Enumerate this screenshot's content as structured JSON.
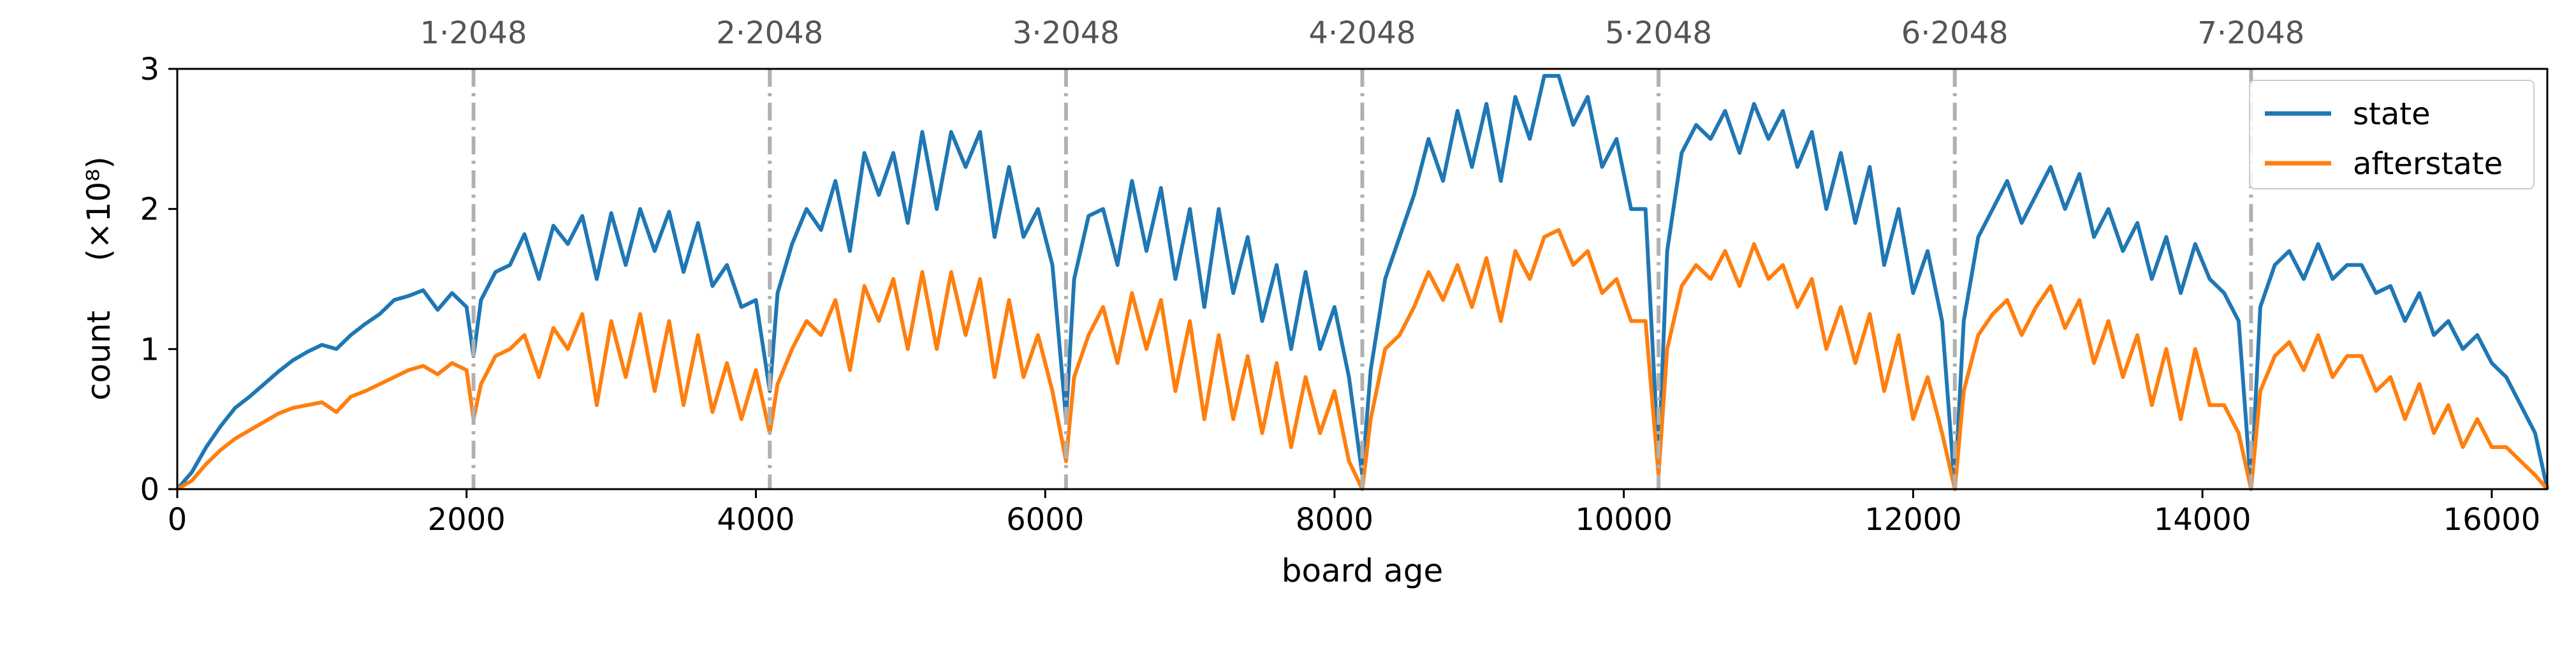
{
  "chart_data": {
    "type": "line",
    "xlabel": "board age",
    "ylabel": "count",
    "ylabel_multiplier": "(×10⁸)",
    "xlim": [
      0,
      16384
    ],
    "ylim": [
      0,
      3
    ],
    "x_ticks": [
      "0",
      "2000",
      "4000",
      "6000",
      "8000",
      "10000",
      "12000",
      "14000",
      "16000"
    ],
    "y_ticks": [
      "0",
      "1",
      "2",
      "3"
    ],
    "reference_lines": {
      "style": "dash-dot",
      "color": "#b0b0b0",
      "x": [
        2048,
        4096,
        6144,
        8192,
        10240,
        12288,
        14336
      ],
      "labels": [
        "1·2048",
        "2·2048",
        "3·2048",
        "4·2048",
        "5·2048",
        "6·2048",
        "7·2048"
      ]
    },
    "legend_position": "top-right",
    "grid": false,
    "series": [
      {
        "name": "state",
        "color": "#1f77b4",
        "note_sampled_points": "approximate envelope read from figure",
        "x": [
          0,
          100,
          200,
          300,
          400,
          500,
          600,
          700,
          800,
          900,
          1000,
          1100,
          1200,
          1300,
          1400,
          1500,
          1600,
          1700,
          1800,
          1900,
          2000,
          2048,
          2100,
          2200,
          2300,
          2400,
          2500,
          2600,
          2700,
          2800,
          2900,
          3000,
          3100,
          3200,
          3300,
          3400,
          3500,
          3600,
          3700,
          3800,
          3900,
          4000,
          4096,
          4150,
          4250,
          4350,
          4450,
          4550,
          4650,
          4750,
          4850,
          4950,
          5050,
          5150,
          5250,
          5350,
          5450,
          5550,
          5650,
          5750,
          5850,
          5950,
          6050,
          6144,
          6200,
          6300,
          6400,
          6500,
          6600,
          6700,
          6800,
          6900,
          7000,
          7100,
          7200,
          7300,
          7400,
          7500,
          7600,
          7700,
          7800,
          7900,
          8000,
          8100,
          8192,
          8250,
          8350,
          8450,
          8550,
          8650,
          8750,
          8850,
          8950,
          9050,
          9150,
          9250,
          9350,
          9450,
          9550,
          9650,
          9750,
          9850,
          9950,
          10050,
          10150,
          10240,
          10300,
          10400,
          10500,
          10600,
          10700,
          10800,
          10900,
          11000,
          11100,
          11200,
          11300,
          11400,
          11500,
          11600,
          11700,
          11800,
          11900,
          12000,
          12100,
          12200,
          12288,
          12350,
          12450,
          12550,
          12650,
          12750,
          12850,
          12950,
          13050,
          13150,
          13250,
          13350,
          13450,
          13550,
          13650,
          13750,
          13850,
          13950,
          14050,
          14150,
          14250,
          14336,
          14400,
          14500,
          14600,
          14700,
          14800,
          14900,
          15000,
          15100,
          15200,
          15300,
          15400,
          15500,
          15600,
          15700,
          15800,
          15900,
          16000,
          16100,
          16200,
          16300,
          16384
        ],
        "values": [
          0.0,
          0.12,
          0.3,
          0.45,
          0.58,
          0.66,
          0.75,
          0.84,
          0.92,
          0.98,
          1.03,
          1.0,
          1.1,
          1.18,
          1.25,
          1.35,
          1.38,
          1.42,
          1.28,
          1.4,
          1.3,
          0.95,
          1.35,
          1.55,
          1.6,
          1.82,
          1.5,
          1.88,
          1.75,
          1.95,
          1.5,
          1.97,
          1.6,
          2.0,
          1.7,
          1.98,
          1.55,
          1.9,
          1.45,
          1.6,
          1.3,
          1.35,
          0.7,
          1.4,
          1.75,
          2.0,
          1.85,
          2.2,
          1.7,
          2.4,
          2.1,
          2.4,
          1.9,
          2.55,
          2.0,
          2.55,
          2.3,
          2.55,
          1.8,
          2.3,
          1.8,
          2.0,
          1.6,
          0.5,
          1.5,
          1.95,
          2.0,
          1.6,
          2.2,
          1.7,
          2.15,
          1.5,
          2.0,
          1.3,
          2.0,
          1.4,
          1.8,
          1.2,
          1.6,
          1.0,
          1.55,
          1.0,
          1.3,
          0.8,
          0.1,
          0.85,
          1.5,
          1.8,
          2.1,
          2.5,
          2.2,
          2.7,
          2.3,
          2.75,
          2.2,
          2.8,
          2.5,
          2.95,
          2.95,
          2.6,
          2.8,
          2.3,
          2.5,
          2.0,
          2.0,
          0.2,
          1.7,
          2.4,
          2.6,
          2.5,
          2.7,
          2.4,
          2.75,
          2.5,
          2.7,
          2.3,
          2.55,
          2.0,
          2.4,
          1.9,
          2.3,
          1.6,
          2.0,
          1.4,
          1.7,
          1.2,
          0.0,
          1.2,
          1.8,
          2.0,
          2.2,
          1.9,
          2.1,
          2.3,
          2.0,
          2.25,
          1.8,
          2.0,
          1.7,
          1.9,
          1.5,
          1.8,
          1.4,
          1.75,
          1.5,
          1.4,
          1.2,
          0.0,
          1.3,
          1.6,
          1.7,
          1.5,
          1.75,
          1.5,
          1.6,
          1.6,
          1.4,
          1.45,
          1.2,
          1.4,
          1.1,
          1.2,
          1.0,
          1.1,
          0.9,
          0.8,
          0.6,
          0.4,
          0.0
        ]
      },
      {
        "name": "afterstate",
        "color": "#ff7f0e",
        "note_sampled_points": "approximate envelope read from figure",
        "x": [
          0,
          100,
          200,
          300,
          400,
          500,
          600,
          700,
          800,
          900,
          1000,
          1100,
          1200,
          1300,
          1400,
          1500,
          1600,
          1700,
          1800,
          1900,
          2000,
          2048,
          2100,
          2200,
          2300,
          2400,
          2500,
          2600,
          2700,
          2800,
          2900,
          3000,
          3100,
          3200,
          3300,
          3400,
          3500,
          3600,
          3700,
          3800,
          3900,
          4000,
          4096,
          4150,
          4250,
          4350,
          4450,
          4550,
          4650,
          4750,
          4850,
          4950,
          5050,
          5150,
          5250,
          5350,
          5450,
          5550,
          5650,
          5750,
          5850,
          5950,
          6050,
          6144,
          6200,
          6300,
          6400,
          6500,
          6600,
          6700,
          6800,
          6900,
          7000,
          7100,
          7200,
          7300,
          7400,
          7500,
          7600,
          7700,
          7800,
          7900,
          8000,
          8100,
          8192,
          8250,
          8350,
          8450,
          8550,
          8650,
          8750,
          8850,
          8950,
          9050,
          9150,
          9250,
          9350,
          9450,
          9550,
          9650,
          9750,
          9850,
          9950,
          10050,
          10150,
          10240,
          10300,
          10400,
          10500,
          10600,
          10700,
          10800,
          10900,
          11000,
          11100,
          11200,
          11300,
          11400,
          11500,
          11600,
          11700,
          11800,
          11900,
          12000,
          12100,
          12200,
          12288,
          12350,
          12450,
          12550,
          12650,
          12750,
          12850,
          12950,
          13050,
          13150,
          13250,
          13350,
          13450,
          13550,
          13650,
          13750,
          13850,
          13950,
          14050,
          14150,
          14250,
          14336,
          14400,
          14500,
          14600,
          14700,
          14800,
          14900,
          15000,
          15100,
          15200,
          15300,
          15400,
          15500,
          15600,
          15700,
          15800,
          15900,
          16000,
          16100,
          16200,
          16300,
          16384
        ],
        "values": [
          0.0,
          0.06,
          0.18,
          0.28,
          0.36,
          0.42,
          0.48,
          0.54,
          0.58,
          0.6,
          0.62,
          0.55,
          0.66,
          0.7,
          0.75,
          0.8,
          0.85,
          0.88,
          0.82,
          0.9,
          0.85,
          0.5,
          0.75,
          0.95,
          1.0,
          1.1,
          0.8,
          1.15,
          1.0,
          1.25,
          0.6,
          1.2,
          0.8,
          1.25,
          0.7,
          1.2,
          0.6,
          1.1,
          0.55,
          0.9,
          0.5,
          0.85,
          0.4,
          0.75,
          1.0,
          1.2,
          1.1,
          1.35,
          0.85,
          1.45,
          1.2,
          1.5,
          1.0,
          1.55,
          1.0,
          1.55,
          1.1,
          1.5,
          0.8,
          1.35,
          0.8,
          1.1,
          0.7,
          0.2,
          0.8,
          1.1,
          1.3,
          0.9,
          1.4,
          1.0,
          1.35,
          0.7,
          1.2,
          0.5,
          1.1,
          0.5,
          0.95,
          0.4,
          0.9,
          0.3,
          0.8,
          0.4,
          0.7,
          0.2,
          0.0,
          0.5,
          1.0,
          1.1,
          1.3,
          1.55,
          1.35,
          1.6,
          1.3,
          1.65,
          1.2,
          1.7,
          1.5,
          1.8,
          1.85,
          1.6,
          1.7,
          1.4,
          1.5,
          1.2,
          1.2,
          0.1,
          1.0,
          1.45,
          1.6,
          1.5,
          1.7,
          1.45,
          1.75,
          1.5,
          1.6,
          1.3,
          1.5,
          1.0,
          1.3,
          0.9,
          1.25,
          0.7,
          1.1,
          0.5,
          0.8,
          0.4,
          0.0,
          0.7,
          1.1,
          1.25,
          1.35,
          1.1,
          1.3,
          1.45,
          1.15,
          1.35,
          0.9,
          1.2,
          0.8,
          1.1,
          0.6,
          1.0,
          0.5,
          1.0,
          0.6,
          0.6,
          0.4,
          0.0,
          0.7,
          0.95,
          1.05,
          0.85,
          1.1,
          0.8,
          0.95,
          0.95,
          0.7,
          0.8,
          0.5,
          0.75,
          0.4,
          0.6,
          0.3,
          0.5,
          0.3,
          0.3,
          0.2,
          0.1,
          0.0
        ]
      }
    ]
  }
}
